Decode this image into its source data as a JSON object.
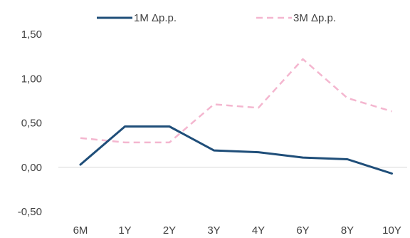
{
  "chart_data": {
    "type": "line",
    "categories": [
      "6M",
      "1Y",
      "2Y",
      "3Y",
      "4Y",
      "6Y",
      "8Y",
      "10Y"
    ],
    "y_ticks": [
      "1,50",
      "1,00",
      "0,50",
      "0,00",
      "-0,50"
    ],
    "y_tick_values": [
      1.5,
      1.0,
      0.5,
      0.0,
      -0.5
    ],
    "ylim": [
      -0.5,
      1.5
    ],
    "grid": false,
    "legend_position": "top",
    "series": [
      {
        "name": "1M Δp.p.",
        "color": "#1f4e79",
        "style": "solid",
        "values": [
          0.03,
          0.46,
          0.46,
          0.19,
          0.17,
          0.11,
          0.09,
          -0.07
        ]
      },
      {
        "name": "3M Δp.p.",
        "color": "#f4b6cf",
        "style": "dashed",
        "values": [
          0.33,
          0.28,
          0.28,
          0.71,
          0.67,
          1.22,
          0.78,
          0.63
        ]
      }
    ]
  }
}
